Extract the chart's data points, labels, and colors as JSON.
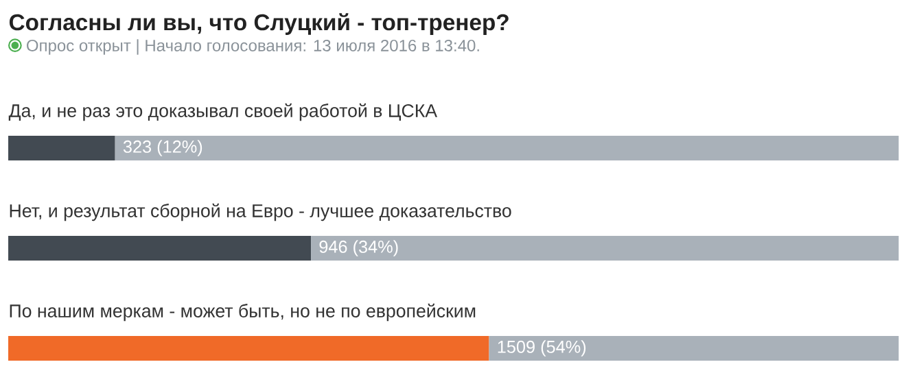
{
  "chart_data": {
    "type": "bar",
    "orientation": "horizontal",
    "stacked": true,
    "title": "Согласны ли вы, что Слуцкий - топ-тренер?",
    "subtitle": "Опрос открыт  |  Начало голосования: 13 июля 2016 в 13:40.",
    "categories": [
      "Да, и не раз это доказывал своей работой в ЦСКА",
      "Нет, и результат сборной на Евро - лучшее доказательство",
      "По нашим меркам - может быть, но не по европейским"
    ],
    "series": [
      {
        "colors": [
          "#424a52",
          "#424a52",
          "#f06a28"
        ],
        "values": [
          12,
          34,
          54
        ],
        "value_labels": [
          "323 (12%)",
          "946 (34%)",
          "1509 (54%)"
        ]
      },
      {
        "color": "#a9b1b9",
        "values": [
          88,
          66,
          46
        ]
      }
    ]
  }
}
